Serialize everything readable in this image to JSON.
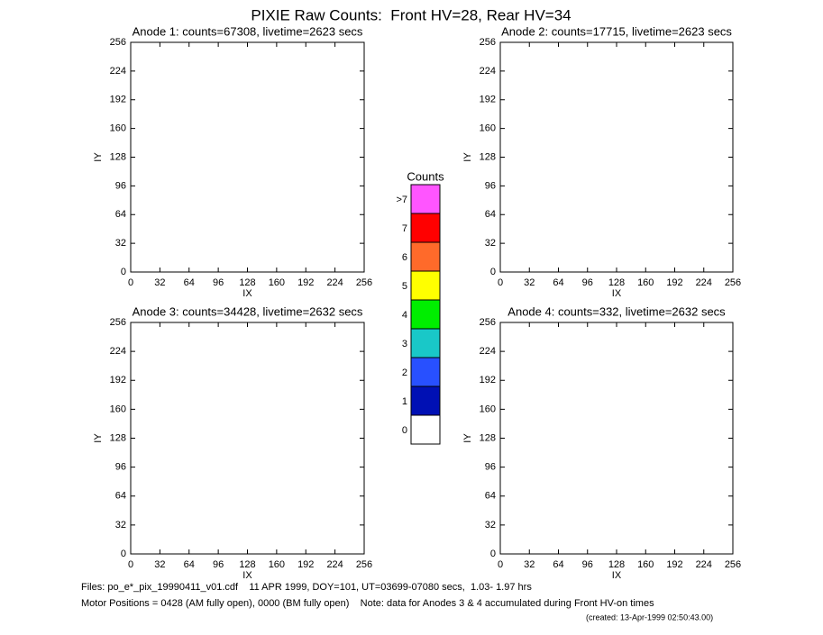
{
  "title": "PIXIE Raw Counts:  Front HV=28, Rear HV=34",
  "chart_data": [
    {
      "type": "heatmap",
      "title": "Anode 1: counts=67308, livetime=2623 secs",
      "xlabel": "IX",
      "ylabel": "IY",
      "xlim": [
        0,
        256
      ],
      "ylim": [
        0,
        256
      ],
      "xticks": [
        0,
        32,
        64,
        96,
        128,
        160,
        192,
        224,
        256
      ],
      "yticks": [
        0,
        32,
        64,
        96,
        128,
        160,
        192,
        224,
        256
      ]
    },
    {
      "type": "heatmap",
      "title": "Anode 2: counts=17715, livetime=2623 secs",
      "xlabel": "IX",
      "ylabel": "IY",
      "xlim": [
        0,
        256
      ],
      "ylim": [
        0,
        256
      ],
      "xticks": [
        0,
        32,
        64,
        96,
        128,
        160,
        192,
        224,
        256
      ],
      "yticks": [
        0,
        32,
        64,
        96,
        128,
        160,
        192,
        224,
        256
      ]
    },
    {
      "type": "heatmap",
      "title": "Anode 3: counts=34428, livetime=2632 secs",
      "xlabel": "IX",
      "ylabel": "IY",
      "xlim": [
        0,
        256
      ],
      "ylim": [
        0,
        256
      ],
      "xticks": [
        0,
        32,
        64,
        96,
        128,
        160,
        192,
        224,
        256
      ],
      "yticks": [
        0,
        32,
        64,
        96,
        128,
        160,
        192,
        224,
        256
      ]
    },
    {
      "type": "heatmap",
      "title": "Anode 4: counts=332, livetime=2632 secs",
      "xlabel": "IX",
      "ylabel": "IY",
      "xlim": [
        0,
        256
      ],
      "ylim": [
        0,
        256
      ],
      "xticks": [
        0,
        32,
        64,
        96,
        128,
        160,
        192,
        224,
        256
      ],
      "yticks": [
        0,
        32,
        64,
        96,
        128,
        160,
        192,
        224,
        256
      ]
    }
  ],
  "colorbar": {
    "title": "Counts",
    "levels": [
      {
        "label": ">7",
        "color": "#ff55ff"
      },
      {
        "label": "7",
        "color": "#ff0000"
      },
      {
        "label": "6",
        "color": "#ff6a2a"
      },
      {
        "label": "5",
        "color": "#ffff00"
      },
      {
        "label": "4",
        "color": "#00ee00"
      },
      {
        "label": "3",
        "color": "#19c8c8"
      },
      {
        "label": "2",
        "color": "#2850ff"
      },
      {
        "label": "1",
        "color": "#0010b4"
      },
      {
        "label": "0",
        "color": "#ffffff"
      }
    ]
  },
  "footer": [
    "Files: po_e*_pix_19990411_v01.cdf    11 APR 1999, DOY=101, UT=03699-07080 secs,  1.03- 1.97 hrs",
    "Motor Positions = 0428 (AM fully open), 0000 (BM fully open)    Note: data for Anodes 3 & 4 accumulated during Front HV-on times",
    "(created: 13-Apr-1999 02:50:43.00)"
  ]
}
